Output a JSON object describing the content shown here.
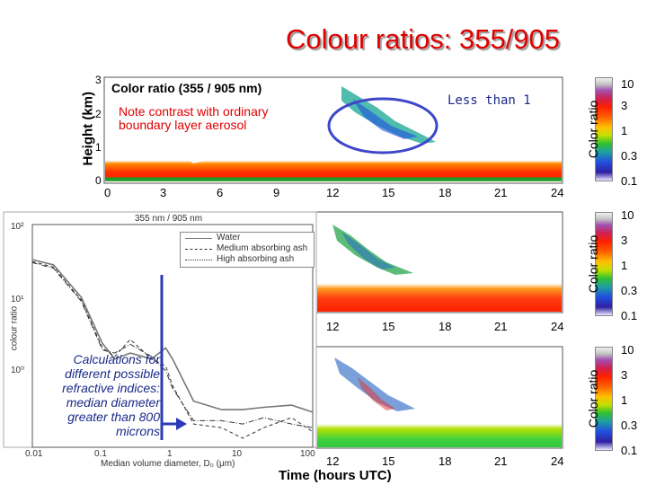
{
  "slide": {
    "title": "Colour ratios: 355/905",
    "annotation_aerosol": [
      "Note contrast with ordinary",
      "boundary layer aerosol"
    ],
    "annotation_less_than": "Less than 1",
    "calc_note": [
      "Calculations for",
      "different possible",
      "refractive indices:",
      "median diameter",
      "greater than 800",
      "microns"
    ],
    "colors": {
      "title": "#e00000",
      "annotation": "#e00000",
      "note": "#1a2a88",
      "ellipse": "#3c46c8",
      "arrow": "#2a3ab8"
    }
  },
  "top_panel": {
    "title": "Color ratio (355 / 905 nm)",
    "ylabel": "Height (km)",
    "yticks": [
      "3",
      "2",
      "1",
      "0"
    ],
    "xticks": [
      "0",
      "3",
      "6",
      "9",
      "12",
      "15",
      "18",
      "21",
      "24"
    ]
  },
  "middle_panel": {
    "xticks": [
      "12",
      "15",
      "18",
      "21",
      "24"
    ]
  },
  "bottom_panel": {
    "xticks": [
      "12",
      "15",
      "18",
      "21",
      "24"
    ],
    "xlabel": "Time (hours UTC)"
  },
  "colorbars": [
    {
      "title": "Color ratio",
      "labels": [
        "10",
        "3",
        "1",
        "0.3",
        "0.1"
      ]
    },
    {
      "title": "Color ratio",
      "labels": [
        "10",
        "3",
        "1",
        "0.3",
        "0.1"
      ]
    },
    {
      "title": "Color ratio",
      "labels": [
        "10",
        "3",
        "1",
        "0.3",
        "0.1"
      ]
    }
  ],
  "inset_chart": {
    "title": "355 nm / 905 nm",
    "ylabel": "colour ratio",
    "xlabel": "Median volume diameter, D₀ (μm)",
    "yticks": [
      "10²",
      "10¹",
      "10⁰"
    ],
    "xticks": [
      "0.01",
      "0.1",
      "1",
      "10",
      "100"
    ],
    "legend": [
      "Water",
      "Medium absorbing ash",
      "High absorbing ash"
    ]
  },
  "chart_data": {
    "type": "line",
    "title": "355 nm / 905 nm",
    "xlabel": "Median volume diameter, D₀ (μm)",
    "ylabel": "colour ratio",
    "xscale": "log",
    "yscale": "log",
    "xlim": [
      0.01,
      100
    ],
    "ylim": [
      0.3,
      100
    ],
    "legend_position": "top-right",
    "series": [
      {
        "name": "Water",
        "style": "solid",
        "x": [
          0.01,
          0.02,
          0.05,
          0.1,
          0.15,
          0.25,
          0.5,
          0.8,
          1.0,
          2,
          5,
          10,
          20,
          50,
          100
        ],
        "y": [
          40,
          35,
          15,
          4.5,
          3.0,
          3.5,
          3.0,
          4.0,
          3.0,
          1.0,
          0.8,
          0.8,
          0.85,
          0.9,
          0.75
        ]
      },
      {
        "name": "Medium absorbing ash",
        "style": "dashed",
        "x": [
          0.01,
          0.02,
          0.05,
          0.1,
          0.15,
          0.25,
          0.5,
          0.8,
          1.0,
          2,
          5,
          10,
          20,
          50,
          100
        ],
        "y": [
          38,
          33,
          14,
          4.0,
          3.2,
          5.0,
          3.0,
          2.5,
          1.5,
          0.55,
          0.5,
          0.38,
          0.5,
          0.65,
          0.45
        ]
      },
      {
        "name": "High absorbing ash",
        "style": "dash-dot",
        "x": [
          0.01,
          0.02,
          0.05,
          0.1,
          0.15,
          0.25,
          0.5,
          0.8,
          1.0,
          2,
          5,
          10,
          20,
          50,
          100
        ],
        "y": [
          37,
          32,
          13.5,
          3.8,
          3.5,
          4.4,
          3.2,
          2.2,
          1.4,
          0.6,
          0.6,
          0.55,
          0.65,
          0.55,
          0.5
        ]
      }
    ]
  }
}
